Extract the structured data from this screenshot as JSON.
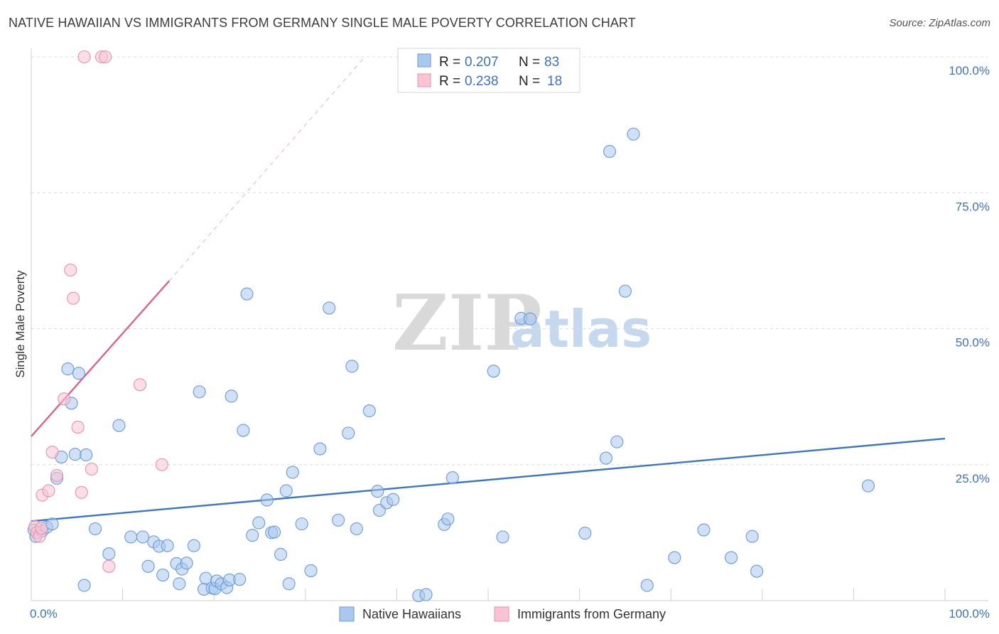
{
  "header": {
    "title": "NATIVE HAWAIIAN VS IMMIGRANTS FROM GERMANY SINGLE MALE POVERTY CORRELATION CHART",
    "source": "Source: ZipAtlas.com"
  },
  "watermark": {
    "zip": "ZIP",
    "atlas": "atlas"
  },
  "legend_top": {
    "rows": [
      {
        "r_label": "R =",
        "r_value": "0.207",
        "n_label": "N =",
        "n_value": "83",
        "color": "#aac8ee",
        "stroke": "#6a9ad8"
      },
      {
        "r_label": "R =",
        "r_value": "0.238",
        "n_label": "N =",
        "n_value": "18",
        "color": "#f8c4d4",
        "stroke": "#e890ac"
      }
    ]
  },
  "legend_bottom": {
    "items": [
      {
        "label": "Native Hawaiians",
        "color": "#aac8ee",
        "stroke": "#6a9ad8"
      },
      {
        "label": "Immigrants from Germany",
        "color": "#f8c4d4",
        "stroke": "#e890ac"
      }
    ]
  },
  "chart_data": {
    "type": "scatter",
    "title": "NATIVE HAWAIIAN VS IMMIGRANTS FROM GERMANY SINGLE MALE POVERTY CORRELATION CHART",
    "xlabel": "",
    "ylabel": "Single Male Poverty",
    "xlim": [
      0,
      100
    ],
    "ylim": [
      0,
      100
    ],
    "x_ticks": [
      "0.0%",
      "100.0%"
    ],
    "y_ticks": [
      {
        "value": 100,
        "label": "100.0%"
      },
      {
        "value": 75,
        "label": "75.0%"
      },
      {
        "value": 50,
        "label": "50.0%"
      },
      {
        "value": 25,
        "label": "25.0%"
      }
    ],
    "series": [
      {
        "name": "Native Hawaiians",
        "color": "#aac8ee",
        "stroke": "#6a9ad8",
        "line_color": "#3a75c8",
        "trend": {
          "x": [
            0,
            100
          ],
          "y": [
            14.6,
            29.8
          ]
        },
        "points": [
          [
            0.3,
            13.0
          ],
          [
            0.5,
            11.8
          ],
          [
            1.2,
            12.8
          ],
          [
            1.7,
            13.5
          ],
          [
            2.3,
            14.1
          ],
          [
            2.8,
            22.5
          ],
          [
            3.3,
            26.4
          ],
          [
            4.0,
            42.6
          ],
          [
            4.4,
            36.3
          ],
          [
            4.8,
            26.9
          ],
          [
            5.2,
            41.8
          ],
          [
            5.8,
            2.8
          ],
          [
            6.0,
            26.8
          ],
          [
            7.0,
            13.2
          ],
          [
            8.5,
            8.6
          ],
          [
            9.6,
            32.2
          ],
          [
            10.9,
            11.7
          ],
          [
            12.2,
            11.7
          ],
          [
            12.8,
            6.3
          ],
          [
            13.4,
            10.8
          ],
          [
            14.0,
            10.0
          ],
          [
            14.4,
            4.7
          ],
          [
            14.9,
            10.1
          ],
          [
            15.9,
            6.8
          ],
          [
            16.2,
            3.1
          ],
          [
            16.5,
            5.8
          ],
          [
            17.0,
            6.9
          ],
          [
            17.8,
            10.1
          ],
          [
            18.4,
            38.4
          ],
          [
            18.9,
            2.1
          ],
          [
            19.1,
            4.1
          ],
          [
            19.8,
            2.3
          ],
          [
            20.1,
            2.2
          ],
          [
            20.3,
            3.6
          ],
          [
            20.8,
            3.1
          ],
          [
            21.4,
            2.4
          ],
          [
            21.7,
            3.8
          ],
          [
            21.9,
            37.6
          ],
          [
            22.8,
            3.9
          ],
          [
            23.2,
            31.3
          ],
          [
            23.6,
            56.4
          ],
          [
            24.2,
            12.0
          ],
          [
            24.9,
            14.3
          ],
          [
            25.8,
            18.5
          ],
          [
            26.3,
            12.5
          ],
          [
            26.6,
            12.6
          ],
          [
            27.3,
            8.5
          ],
          [
            27.9,
            20.2
          ],
          [
            28.2,
            3.1
          ],
          [
            28.6,
            23.6
          ],
          [
            29.6,
            14.1
          ],
          [
            30.6,
            5.5
          ],
          [
            31.6,
            27.9
          ],
          [
            32.6,
            53.8
          ],
          [
            33.6,
            14.8
          ],
          [
            34.7,
            30.8
          ],
          [
            35.1,
            43.1
          ],
          [
            35.6,
            13.2
          ],
          [
            37.0,
            34.9
          ],
          [
            37.9,
            20.1
          ],
          [
            38.1,
            16.6
          ],
          [
            38.9,
            18.0
          ],
          [
            39.6,
            18.6
          ],
          [
            42.4,
            0.9
          ],
          [
            43.2,
            1.1
          ],
          [
            45.2,
            14.0
          ],
          [
            45.6,
            15.0
          ],
          [
            46.1,
            22.6
          ],
          [
            50.6,
            42.2
          ],
          [
            51.6,
            11.7
          ],
          [
            53.6,
            51.9
          ],
          [
            54.6,
            51.8
          ],
          [
            60.6,
            12.4
          ],
          [
            62.9,
            26.2
          ],
          [
            63.3,
            82.6
          ],
          [
            64.1,
            29.2
          ],
          [
            65.0,
            56.9
          ],
          [
            65.9,
            85.8
          ],
          [
            67.4,
            2.8
          ],
          [
            70.4,
            7.9
          ],
          [
            73.6,
            13.0
          ],
          [
            76.6,
            7.9
          ],
          [
            78.9,
            11.8
          ],
          [
            79.4,
            5.4
          ],
          [
            91.6,
            21.1
          ]
        ]
      },
      {
        "name": "Immigrants from Germany",
        "color": "#f8c4d4",
        "stroke": "#e890ac",
        "line_color": "#e0628a",
        "trend": {
          "x": [
            0,
            15.1
          ],
          "y": [
            30.2,
            58.8
          ]
        },
        "trend_dashed": {
          "x": [
            15.1,
            36.5
          ],
          "y": [
            58.8,
            100
          ]
        },
        "points": [
          [
            0.4,
            13.6
          ],
          [
            0.6,
            12.5
          ],
          [
            0.9,
            11.8
          ],
          [
            1.1,
            13.3
          ],
          [
            1.2,
            19.4
          ],
          [
            1.9,
            20.2
          ],
          [
            2.3,
            27.3
          ],
          [
            2.8,
            23.0
          ],
          [
            3.6,
            37.1
          ],
          [
            4.3,
            60.8
          ],
          [
            4.6,
            55.6
          ],
          [
            5.1,
            31.9
          ],
          [
            5.5,
            19.9
          ],
          [
            5.8,
            100
          ],
          [
            6.6,
            24.2
          ],
          [
            7.7,
            100
          ],
          [
            8.1,
            100
          ],
          [
            8.5,
            6.3
          ],
          [
            11.9,
            39.7
          ],
          [
            14.3,
            25.0
          ]
        ]
      }
    ]
  }
}
